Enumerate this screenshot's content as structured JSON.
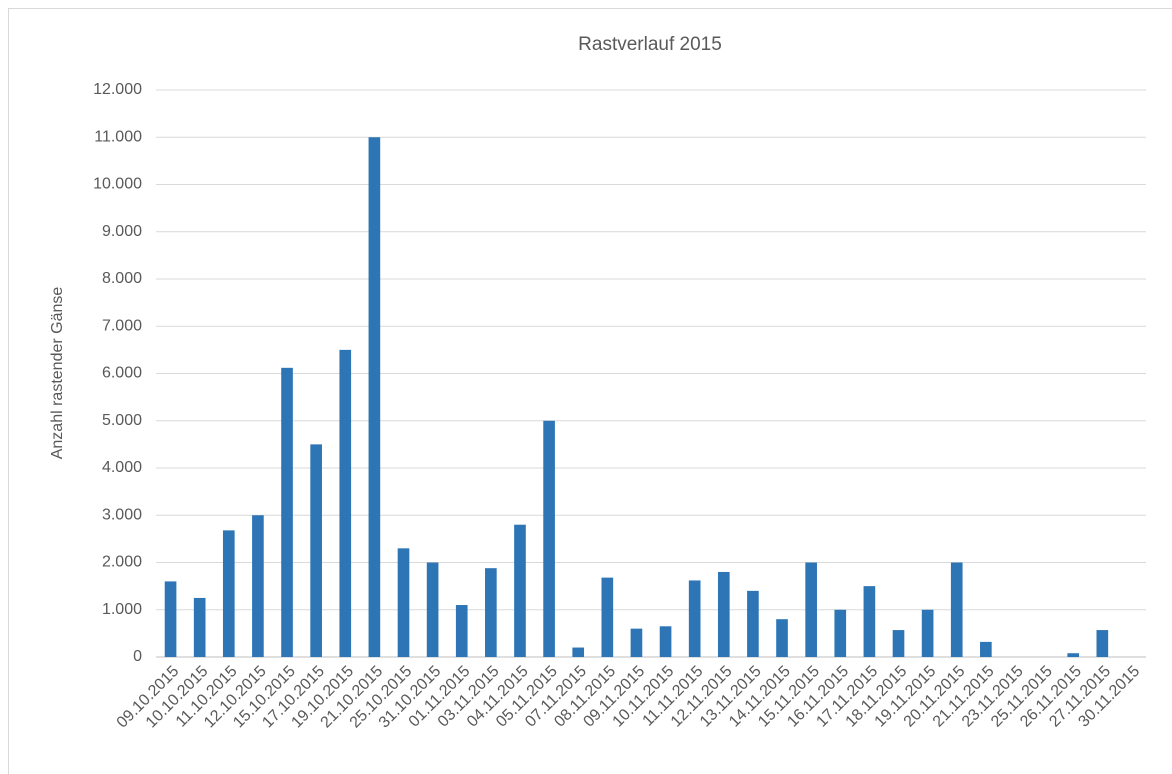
{
  "chart_data": {
    "type": "bar",
    "title": "Rastverlauf 2015",
    "y_label": "Anzahl rastender Gänse",
    "categories": [
      "09.10.2015",
      "10.10.2015",
      "11.10.2015",
      "12.10.2015",
      "15.10.2015",
      "17.10.2015",
      "19.10.2015",
      "21.10.2015",
      "25.10.2015",
      "31.10.2015",
      "01.11.2015",
      "03.11.2015",
      "04.11.2015",
      "05.11.2015",
      "07.11.2015",
      "08.11.2015",
      "09.11.2015",
      "10.11.2015",
      "11.11.2015",
      "12.11.2015",
      "13.11.2015",
      "14.11.2015",
      "15.11.2015",
      "16.11.2015",
      "17.11.2015",
      "18.11.2015",
      "19.11.2015",
      "20.11.2015",
      "21.11.2015",
      "23.11.2015",
      "25.11.2015",
      "26.11.2015",
      "27.11.2015",
      "30.11.2015"
    ],
    "values": [
      1600,
      1250,
      2680,
      3000,
      6120,
      4500,
      6500,
      11000,
      2300,
      2000,
      1100,
      1880,
      2800,
      5000,
      200,
      1680,
      600,
      650,
      1620,
      1800,
      1400,
      800,
      2000,
      1000,
      1500,
      570,
      1000,
      2000,
      320,
      0,
      0,
      80,
      570,
      0
    ],
    "color": "#2e75b6",
    "ylim": [
      0,
      12000
    ],
    "yticks": [
      0,
      {
        "value": 1000,
        "label": "1.000"
      },
      {
        "value": 2000,
        "label": "2.000"
      },
      {
        "value": 3000,
        "label": "3.000"
      },
      {
        "value": 4000,
        "label": "4.000"
      },
      {
        "value": 5000,
        "label": "5.000"
      },
      {
        "value": 6000,
        "label": "6.000"
      },
      {
        "value": 7000,
        "label": "7.000"
      },
      {
        "value": 8000,
        "label": "8.000"
      },
      {
        "value": 9000,
        "label": "9.000"
      },
      {
        "value": 10000,
        "label": "10.000"
      },
      {
        "value": 11000,
        "label": "11.000"
      },
      {
        "value": 12000,
        "label": "12.000"
      }
    ],
    "grid": true
  }
}
